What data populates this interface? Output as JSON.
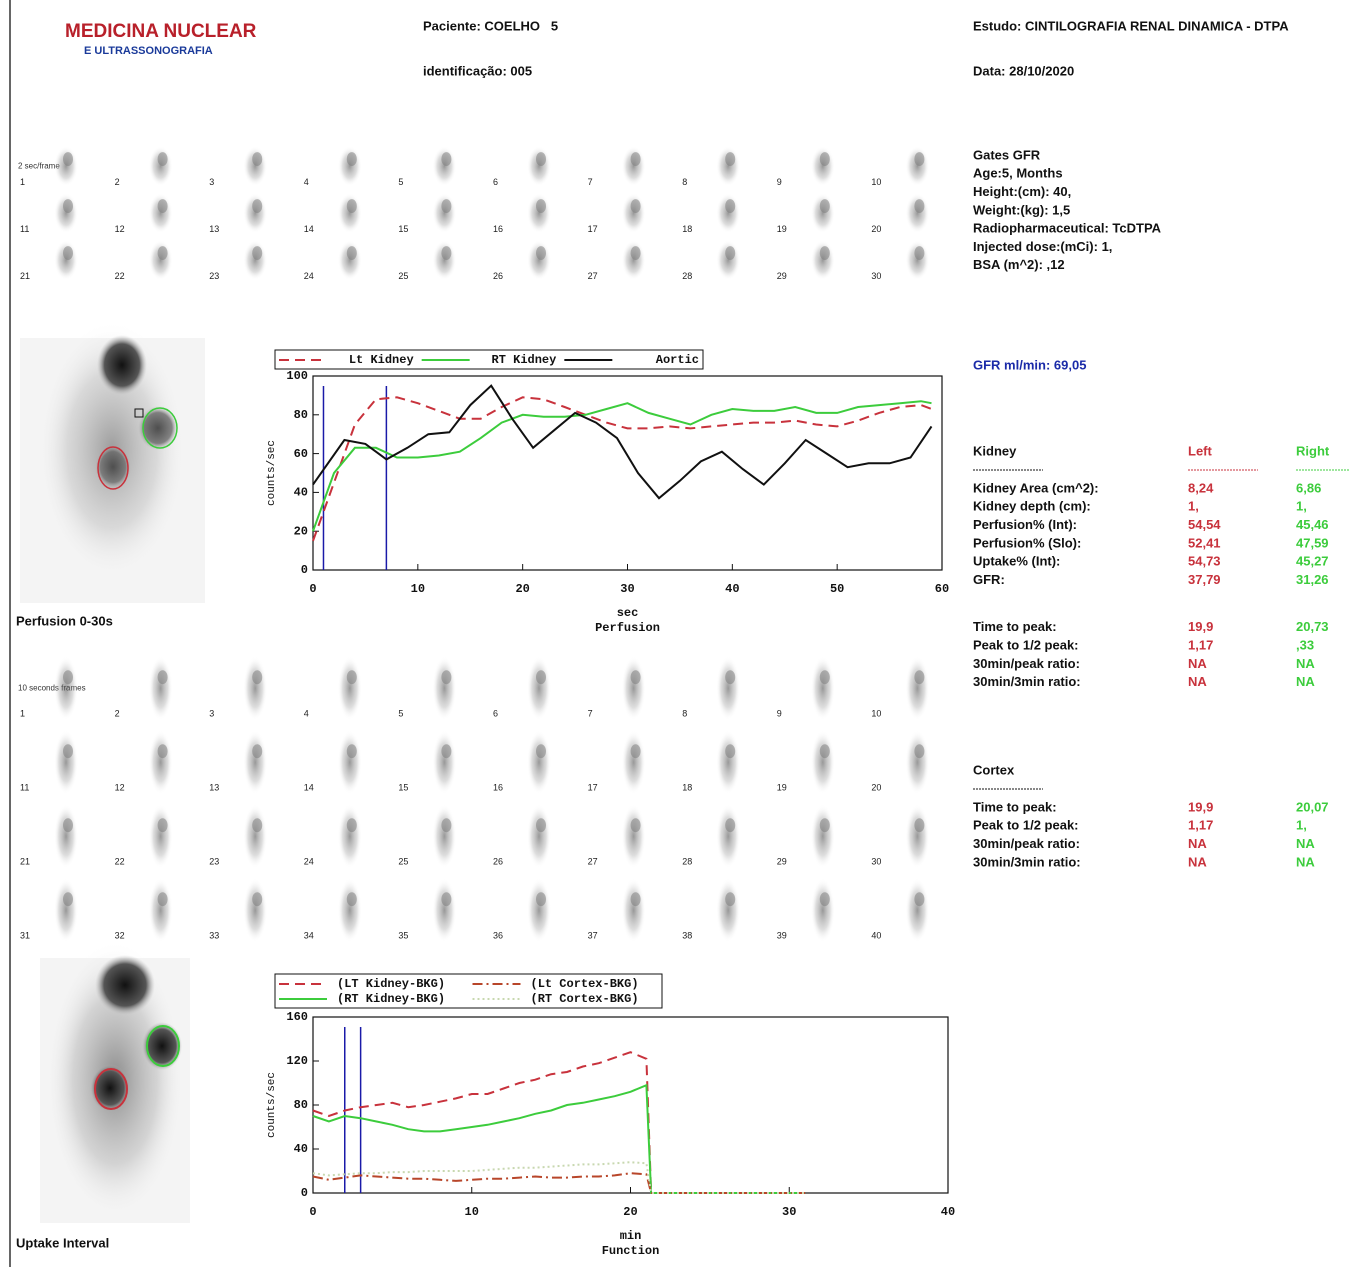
{
  "header": {
    "logo_title": "MEDICINA NUCLEAR",
    "logo_subtitle": "E ULTRASSONOGRAFIA",
    "patient": "Paciente: COELHO   5",
    "identification": "identificação: 005",
    "study": "Estudo: CINTILOGRAFIA RENAL DINAMICA - DTPA",
    "date": "Data: 28/10/2020"
  },
  "perfusion_frames": {
    "label": "2 sec/frame",
    "numbers": [
      1,
      2,
      3,
      4,
      5,
      6,
      7,
      8,
      9,
      10,
      11,
      12,
      13,
      14,
      15,
      16,
      17,
      18,
      19,
      20,
      21,
      22,
      23,
      24,
      25,
      26,
      27,
      28,
      29,
      30
    ]
  },
  "function_frames": {
    "label": "10 seconds frames",
    "numbers": [
      1,
      2,
      3,
      4,
      5,
      6,
      7,
      8,
      9,
      10,
      11,
      12,
      13,
      14,
      15,
      16,
      17,
      18,
      19,
      20,
      21,
      22,
      23,
      24,
      25,
      26,
      27,
      28,
      29,
      30,
      31,
      32,
      33,
      34,
      35,
      36,
      37,
      38,
      39,
      40
    ]
  },
  "perfusion_caption": "Perfusion 0-30s",
  "uptake_caption": "Uptake Interval",
  "info": {
    "lines": [
      "Gates GFR",
      "Age:5, Months",
      "Height:(cm): 40,",
      "Weight:(kg): 1,5",
      "Radiopharmaceutical: TcDTPA",
      "Injected dose:(mCi): 1,",
      "BSA (m^2): ,12"
    ]
  },
  "gfr": "GFR ml/min: 69,05",
  "kidney_table": {
    "title": "Kidney",
    "left_header": "Left",
    "right_header": "Right",
    "groups": [
      [
        [
          "Kidney Area (cm^2):",
          "8,24",
          "6,86"
        ],
        [
          "Kidney depth (cm):",
          "1,",
          "1,"
        ],
        [
          "Perfusion% (Int):",
          "54,54",
          "45,46"
        ],
        [
          "Perfusion% (Slo):",
          "52,41",
          "47,59"
        ],
        [
          "Uptake% (Int):",
          "54,73",
          "45,27"
        ],
        [
          "GFR:",
          "37,79",
          "31,26"
        ]
      ],
      [
        [
          "Time to peak:",
          "19,9",
          "20,73"
        ],
        [
          "Peak to 1/2 peak:",
          "1,17",
          ",33"
        ],
        [
          "30min/peak ratio:",
          "NA",
          "NA"
        ],
        [
          "30min/3min ratio:",
          "NA",
          "NA"
        ]
      ]
    ]
  },
  "cortex_table": {
    "title": "Cortex",
    "groups": [
      [
        [
          "Time to peak:",
          "19,9",
          "20,07"
        ],
        [
          "Peak to 1/2 peak:",
          "1,17",
          "1,"
        ],
        [
          "30min/peak ratio:",
          "NA",
          "NA"
        ],
        [
          "30min/3min ratio:",
          "NA",
          "NA"
        ]
      ]
    ]
  },
  "chart_data": [
    {
      "type": "line",
      "x_label": "sec",
      "subtitle": "Perfusion",
      "y_label": "counts/sec",
      "xlim": [
        0,
        60
      ],
      "xticks": [
        0,
        10,
        20,
        30,
        40,
        50,
        60
      ],
      "ylim": [
        0,
        100
      ],
      "yticks": [
        0,
        20,
        40,
        60,
        80,
        100
      ],
      "legend": "top-left",
      "markers": {
        "color": "#1a1aa8",
        "x": [
          1,
          7
        ]
      },
      "series": [
        {
          "name": "Lt Kidney",
          "color": "#c8323c",
          "line_style": "dashed",
          "x": [
            0,
            2,
            4,
            6,
            8,
            10,
            12,
            14,
            16,
            18,
            20,
            22,
            24,
            26,
            28,
            30,
            32,
            34,
            36,
            38,
            40,
            42,
            44,
            46,
            48,
            50,
            52,
            54,
            56,
            58,
            59
          ],
          "values": [
            15,
            45,
            75,
            88,
            89,
            86,
            82,
            78,
            78,
            84,
            89,
            88,
            84,
            80,
            76,
            73,
            73,
            74,
            73,
            74,
            75,
            76,
            76,
            77,
            75,
            74,
            77,
            81,
            84,
            85,
            83
          ]
        },
        {
          "name": "RT Kidney",
          "color": "#3ccc3c",
          "line_style": "solid",
          "x": [
            0,
            2,
            4,
            6,
            8,
            10,
            12,
            14,
            16,
            18,
            20,
            22,
            24,
            26,
            28,
            30,
            32,
            34,
            36,
            38,
            40,
            42,
            44,
            46,
            48,
            50,
            52,
            54,
            56,
            58,
            59
          ],
          "values": [
            20,
            50,
            63,
            63,
            58,
            58,
            59,
            61,
            68,
            76,
            80,
            79,
            79,
            80,
            83,
            86,
            81,
            78,
            75,
            80,
            83,
            82,
            82,
            84,
            81,
            81,
            84,
            85,
            86,
            87,
            86
          ]
        },
        {
          "name": "Aortic",
          "color": "#111111",
          "line_style": "solid",
          "x": [
            0,
            3,
            5,
            7,
            9,
            11,
            13,
            15,
            17,
            19,
            21,
            23,
            25,
            27,
            29,
            31,
            33,
            35,
            37,
            39,
            41,
            43,
            45,
            47,
            49,
            51,
            53,
            55,
            57,
            59
          ],
          "values": [
            44,
            67,
            65,
            57,
            63,
            70,
            71,
            85,
            95,
            78,
            63,
            72,
            81,
            76,
            68,
            50,
            37,
            46,
            56,
            61,
            52,
            44,
            55,
            67,
            60,
            53,
            55,
            55,
            58,
            74
          ]
        }
      ]
    },
    {
      "type": "line",
      "x_label": "min",
      "subtitle": "Function",
      "y_label": "counts/sec",
      "xlim": [
        0,
        40
      ],
      "xticks": [
        0,
        10,
        20,
        30,
        40
      ],
      "ylim": [
        0,
        160
      ],
      "yticks": [
        0,
        40,
        80,
        120,
        160
      ],
      "legend": "top-left",
      "markers": {
        "color": "#1a1aa8",
        "x": [
          2,
          3
        ]
      },
      "x": [
        0,
        1,
        2,
        3,
        4,
        5,
        6,
        7,
        8,
        9,
        10,
        11,
        12,
        13,
        14,
        15,
        16,
        17,
        18,
        19,
        20,
        21,
        21.3,
        25,
        31
      ],
      "series": [
        {
          "name": "(LT Kidney-BKG)",
          "color": "#c8323c",
          "line_style": "dashed",
          "values": [
            75,
            70,
            75,
            78,
            80,
            82,
            78,
            80,
            83,
            86,
            90,
            90,
            95,
            100,
            103,
            108,
            110,
            115,
            118,
            123,
            128,
            122,
            0,
            0,
            0
          ]
        },
        {
          "name": "(RT Kidney-BKG)",
          "color": "#3ccc3c",
          "line_style": "solid",
          "values": [
            70,
            65,
            70,
            68,
            65,
            62,
            58,
            56,
            56,
            58,
            60,
            62,
            65,
            68,
            72,
            75,
            80,
            82,
            85,
            88,
            92,
            98,
            0,
            0,
            0
          ]
        },
        {
          "name": "(Lt Cortex-BKG)",
          "color": "#b8462a",
          "line_style": "dashdot",
          "values": [
            15,
            12,
            14,
            16,
            15,
            14,
            13,
            13,
            12,
            11,
            12,
            13,
            13,
            14,
            15,
            14,
            14,
            15,
            15,
            16,
            18,
            17,
            0,
            0,
            0
          ]
        },
        {
          "name": "(RT Cortex-BKG)",
          "color": "#c8d8b0",
          "line_style": "dotted",
          "values": [
            18,
            16,
            17,
            18,
            18,
            19,
            19,
            20,
            20,
            20,
            20,
            21,
            22,
            23,
            23,
            24,
            25,
            26,
            26,
            27,
            28,
            27,
            0,
            0,
            0
          ]
        }
      ]
    }
  ]
}
